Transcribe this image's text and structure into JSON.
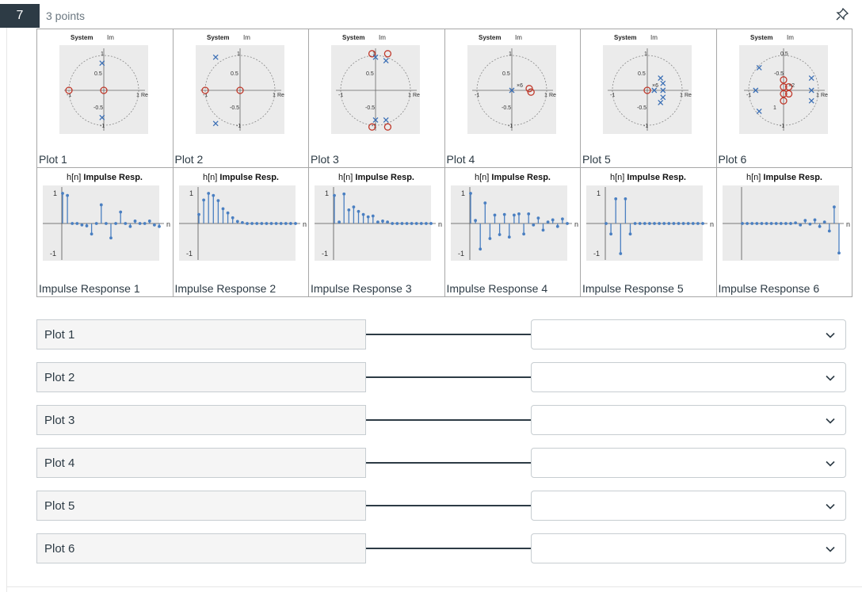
{
  "question": {
    "number": "7",
    "points": "3 points"
  },
  "plots": [
    {
      "caption": "Plot 1",
      "system_label": "System",
      "im_label": "Im",
      "re_label": "Re",
      "ticks": [
        "1",
        "0.5",
        "-0.5",
        "-1",
        "-1",
        "1"
      ],
      "zeros": [
        [
          -1,
          0
        ],
        [
          0,
          0
        ]
      ],
      "poles": [
        [
          -0.05,
          0.78
        ],
        [
          -0.05,
          -0.78
        ]
      ],
      "annotations": []
    },
    {
      "caption": "Plot 2",
      "system_label": "System",
      "im_label": "Im",
      "re_label": "Re",
      "ticks": [
        "1",
        "0.5",
        "-0.5",
        "-1",
        "-1",
        "1"
      ],
      "zeros": [
        [
          -1,
          0
        ],
        [
          0,
          0
        ]
      ],
      "poles": [
        [
          -0.7,
          0.95
        ],
        [
          -0.7,
          -0.95
        ]
      ],
      "annotations": []
    },
    {
      "caption": "Plot 3",
      "system_label": "System",
      "im_label": "Im",
      "re_label": "Re",
      "ticks": [
        "1",
        "0.5",
        "-0.5",
        "-1",
        "-1",
        "1"
      ],
      "zeros": [
        [
          -0.1,
          1.05
        ],
        [
          0.35,
          1.05
        ],
        [
          -0.1,
          -1.05
        ],
        [
          0.35,
          -1.05
        ]
      ],
      "poles": [
        [
          0,
          0.95
        ],
        [
          0.3,
          0.85
        ],
        [
          0,
          -0.85
        ],
        [
          0.3,
          -0.85
        ]
      ],
      "annotations": []
    },
    {
      "caption": "Plot 4",
      "system_label": "System",
      "im_label": "Im",
      "re_label": "Re",
      "ticks": [
        "1",
        "0.5",
        "-0.5",
        "-1",
        "-1",
        "1"
      ],
      "zeros": [
        [
          0.5,
          0.05
        ],
        [
          0.55,
          -0.05
        ]
      ],
      "poles": [
        [
          0,
          0
        ]
      ],
      "annotations": [
        "×6"
      ]
    },
    {
      "caption": "Plot 5",
      "system_label": "System",
      "im_label": "Im",
      "re_label": "Re",
      "ticks": [
        "1",
        "0.5",
        "-0.5",
        "-1",
        "-1",
        "1"
      ],
      "zeros": [
        [
          0,
          0
        ]
      ],
      "poles": [
        [
          0.2,
          0
        ],
        [
          0.38,
          0.35
        ],
        [
          0.45,
          0.2
        ],
        [
          0.45,
          0
        ],
        [
          0.45,
          -0.2
        ],
        [
          0.38,
          -0.35
        ]
      ],
      "annotations": [
        "×6"
      ]
    },
    {
      "caption": "Plot 6",
      "system_label": "System",
      "im_label": "Im",
      "re_label": "Re",
      "ticks": [
        "0.5",
        "-0.5",
        "1",
        "-1",
        "-1",
        "1"
      ],
      "zeros": [
        [
          0,
          0.1
        ],
        [
          0.15,
          0.1
        ],
        [
          0,
          -0.1
        ],
        [
          0.15,
          -0.1
        ],
        [
          0,
          0.3
        ],
        [
          0,
          -0.3
        ]
      ],
      "poles": [
        [
          -0.7,
          0.65
        ],
        [
          -0.7,
          -0.6
        ],
        [
          -0.8,
          0
        ],
        [
          0.8,
          0.35
        ],
        [
          0.8,
          0
        ],
        [
          0.8,
          -0.3
        ]
      ],
      "annotations": [
        "×2"
      ]
    }
  ],
  "impulse": [
    {
      "caption": "Impulse Response 1",
      "title_prefix": "h[n]",
      "title_bold": "Impulse Resp.",
      "n_label": "n",
      "ylabels": [
        "1",
        "-1"
      ],
      "values": [
        1,
        0.93,
        0,
        0,
        -0.05,
        -0.08,
        -0.35,
        0,
        0.62,
        0,
        -0.48,
        0,
        0.38,
        0,
        -0.1,
        0.08,
        0,
        0,
        0.08,
        -0.05,
        -0.1
      ]
    },
    {
      "caption": "Impulse Response 2",
      "title_prefix": "h[n]",
      "title_bold": "Impulse Resp.",
      "n_label": "n",
      "ylabels": [
        "1",
        "-1"
      ],
      "values": [
        0.3,
        0.78,
        1,
        0.93,
        0.76,
        0.49,
        0.35,
        0.19,
        0.07,
        0.03,
        0,
        0,
        0,
        0,
        0,
        0,
        0,
        0,
        0,
        0,
        0
      ]
    },
    {
      "caption": "Impulse Response 3",
      "title_prefix": "h[n]",
      "title_bold": "Impulse Resp.",
      "n_label": "n",
      "ylabels": [
        "1",
        "-1"
      ],
      "values": [
        0.93,
        0.05,
        0.98,
        0.45,
        0.55,
        0.4,
        0.3,
        0.22,
        0.25,
        0.05,
        0.08,
        0.05,
        0,
        0,
        0,
        0,
        0,
        0,
        0,
        0,
        0
      ]
    },
    {
      "caption": "Impulse Response 4",
      "title_prefix": "h[n]",
      "title_bold": "Impulse Resp.",
      "n_label": "n",
      "ylabels": [
        "1",
        "-1"
      ],
      "values": [
        1,
        0.1,
        -0.85,
        0.68,
        -0.5,
        0.28,
        -0.37,
        0.3,
        -0.45,
        0.28,
        0.32,
        -0.35,
        0.32,
        -0.05,
        0.18,
        -0.22,
        0.05,
        0.12,
        -0.1,
        0.15,
        0
      ]
    },
    {
      "caption": "Impulse Response 5",
      "title_prefix": "h[n]",
      "title_bold": "Impulse Resp.",
      "n_label": "n",
      "ylabels": [
        "1",
        "-1"
      ],
      "values": [
        0,
        -0.35,
        0.82,
        -1,
        0.82,
        -0.35,
        0,
        0,
        0,
        0,
        0,
        0,
        0,
        0,
        0,
        0,
        0,
        0,
        0,
        0,
        0
      ]
    },
    {
      "caption": "Impulse Response 6",
      "title_prefix": "h[n]",
      "title_bold": "Impulse Resp.",
      "n_label": "n",
      "ylabels": [],
      "values": [
        0,
        0,
        0,
        0,
        0,
        0,
        0,
        0,
        0,
        0,
        0,
        0.02,
        -0.05,
        0.1,
        -0.02,
        0.12,
        -0.1,
        0.05,
        -0.25,
        0.55,
        -0.98
      ]
    }
  ],
  "matching": {
    "rows": [
      {
        "label": "Plot 1",
        "selected": ""
      },
      {
        "label": "Plot 2",
        "selected": ""
      },
      {
        "label": "Plot 3",
        "selected": ""
      },
      {
        "label": "Plot 4",
        "selected": ""
      },
      {
        "label": "Plot 5",
        "selected": ""
      },
      {
        "label": "Plot 6",
        "selected": ""
      }
    ]
  },
  "colors": {
    "pole": "#3b6fb5",
    "zero": "#c0392b",
    "stem": "#4a7fc1",
    "panel": "#ebebeb",
    "header_bg": "#2d3b45"
  },
  "icons": {
    "pin": "pin-icon",
    "dropdown": "chevron-down-icon"
  }
}
